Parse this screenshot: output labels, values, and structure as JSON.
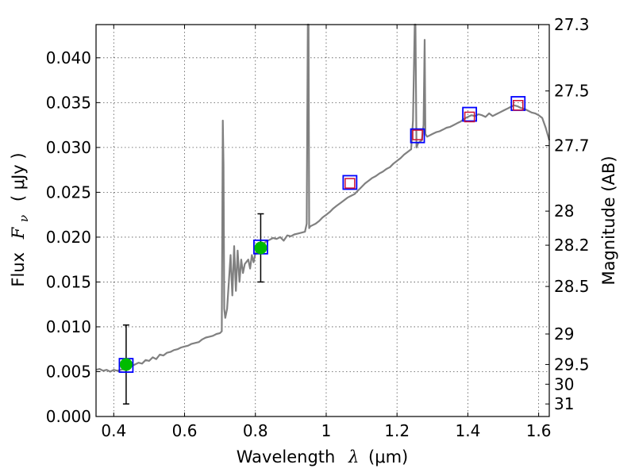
{
  "chart_data": {
    "type": "line",
    "title": "",
    "xlabel": "Wavelength",
    "xlabel_symbol": "λ",
    "xlabel_unit": "(μm)",
    "ylabel": "Flux",
    "ylabel_symbol": "F",
    "ylabel_subscript": "ν",
    "ylabel_unit": "( μJy )",
    "y2label": "Magnitude (AB)",
    "xlim": [
      0.35,
      1.63
    ],
    "ylim": [
      0.0,
      0.0437
    ],
    "grid": true,
    "grid_style": "dotted",
    "x_ticks": [
      {
        "value": 0.4,
        "label": "0.4"
      },
      {
        "value": 0.6,
        "label": "0.6"
      },
      {
        "value": 0.8,
        "label": "0.8"
      },
      {
        "value": 1.0,
        "label": "1"
      },
      {
        "value": 1.2,
        "label": "1.2"
      },
      {
        "value": 1.4,
        "label": "1.4"
      },
      {
        "value": 1.6,
        "label": "1.6"
      }
    ],
    "y_ticks": [
      {
        "value": 0.0,
        "label": "0.000"
      },
      {
        "value": 0.005,
        "label": "0.005"
      },
      {
        "value": 0.01,
        "label": "0.010"
      },
      {
        "value": 0.015,
        "label": "0.015"
      },
      {
        "value": 0.02,
        "label": "0.020"
      },
      {
        "value": 0.025,
        "label": "0.025"
      },
      {
        "value": 0.03,
        "label": "0.030"
      },
      {
        "value": 0.035,
        "label": "0.035"
      },
      {
        "value": 0.04,
        "label": "0.040"
      }
    ],
    "y2_ticks": [
      {
        "flux": 0.0437,
        "label": "27.3"
      },
      {
        "flux": 0.0363,
        "label": "27.5"
      },
      {
        "flux": 0.0302,
        "label": "27.7"
      },
      {
        "flux": 0.0229,
        "label": "28"
      },
      {
        "flux": 0.0191,
        "label": "28.2"
      },
      {
        "flux": 0.0145,
        "label": "28.5"
      },
      {
        "flux": 0.0092,
        "label": "29"
      },
      {
        "flux": 0.0058,
        "label": "29.5"
      },
      {
        "flux": 0.0036,
        "label": "30"
      },
      {
        "flux": 0.0014,
        "label": "31"
      }
    ],
    "colors": {
      "model": "#808080",
      "photometry_fill": "#00bb00",
      "observed_box": "#0000ff",
      "model_box": "#cc1133",
      "errorbar": "#000000",
      "grid": "#555555"
    },
    "model_spectrum": {
      "x": [
        0.35,
        0.36,
        0.37,
        0.38,
        0.39,
        0.4,
        0.41,
        0.42,
        0.43,
        0.44,
        0.45,
        0.46,
        0.47,
        0.48,
        0.49,
        0.5,
        0.51,
        0.52,
        0.53,
        0.54,
        0.55,
        0.56,
        0.57,
        0.58,
        0.59,
        0.6,
        0.61,
        0.62,
        0.63,
        0.64,
        0.65,
        0.66,
        0.67,
        0.68,
        0.69,
        0.7,
        0.705,
        0.708,
        0.71,
        0.712,
        0.715,
        0.72,
        0.73,
        0.735,
        0.74,
        0.745,
        0.75,
        0.755,
        0.76,
        0.765,
        0.77,
        0.78,
        0.785,
        0.79,
        0.795,
        0.8,
        0.81,
        0.82,
        0.83,
        0.84,
        0.85,
        0.86,
        0.87,
        0.88,
        0.89,
        0.9,
        0.91,
        0.92,
        0.93,
        0.94,
        0.945,
        0.948,
        0.95,
        0.952,
        0.955,
        0.96,
        0.97,
        0.98,
        0.99,
        1.0,
        1.01,
        1.02,
        1.03,
        1.04,
        1.05,
        1.06,
        1.07,
        1.08,
        1.09,
        1.1,
        1.11,
        1.12,
        1.13,
        1.14,
        1.15,
        1.16,
        1.17,
        1.18,
        1.19,
        1.2,
        1.21,
        1.22,
        1.23,
        1.24,
        1.245,
        1.25,
        1.252,
        1.255,
        1.26,
        1.27,
        1.275,
        1.278,
        1.28,
        1.285,
        1.29,
        1.3,
        1.31,
        1.32,
        1.33,
        1.34,
        1.35,
        1.36,
        1.37,
        1.38,
        1.39,
        1.4,
        1.41,
        1.42,
        1.43,
        1.44,
        1.45,
        1.46,
        1.47,
        1.48,
        1.49,
        1.5,
        1.51,
        1.52,
        1.53,
        1.54,
        1.55,
        1.56,
        1.57,
        1.58,
        1.59,
        1.6,
        1.61,
        1.62,
        1.63
      ],
      "y": [
        0.0052,
        0.0053,
        0.0051,
        0.0052,
        0.005,
        0.0052,
        0.0051,
        0.0052,
        0.0053,
        0.0055,
        0.0056,
        0.0058,
        0.006,
        0.0059,
        0.0063,
        0.0062,
        0.0066,
        0.0064,
        0.0069,
        0.0068,
        0.0071,
        0.0072,
        0.0074,
        0.0075,
        0.0077,
        0.0078,
        0.0079,
        0.0081,
        0.0082,
        0.0083,
        0.0086,
        0.0088,
        0.0089,
        0.009,
        0.0092,
        0.0093,
        0.0095,
        0.033,
        0.028,
        0.012,
        0.011,
        0.012,
        0.018,
        0.0135,
        0.019,
        0.014,
        0.0185,
        0.015,
        0.0175,
        0.016,
        0.017,
        0.0175,
        0.0165,
        0.018,
        0.0172,
        0.0182,
        0.0188,
        0.0192,
        0.0195,
        0.0197,
        0.0199,
        0.0198,
        0.02,
        0.0196,
        0.0202,
        0.0201,
        0.0203,
        0.0204,
        0.0205,
        0.0206,
        0.0215,
        0.0437,
        0.0437,
        0.021,
        0.0212,
        0.0213,
        0.0215,
        0.0218,
        0.0222,
        0.0225,
        0.0228,
        0.0232,
        0.0235,
        0.0238,
        0.0241,
        0.0244,
        0.0246,
        0.0248,
        0.0252,
        0.0256,
        0.026,
        0.0263,
        0.0266,
        0.0268,
        0.0271,
        0.0273,
        0.0276,
        0.0278,
        0.0282,
        0.0285,
        0.0288,
        0.0292,
        0.0295,
        0.0298,
        0.033,
        0.0437,
        0.0437,
        0.03,
        0.0305,
        0.0308,
        0.0325,
        0.042,
        0.0315,
        0.0312,
        0.0313,
        0.0315,
        0.0317,
        0.0318,
        0.032,
        0.0322,
        0.0323,
        0.0325,
        0.0327,
        0.0329,
        0.0332,
        0.0334,
        0.0336,
        0.0335,
        0.0337,
        0.0336,
        0.0334,
        0.0338,
        0.0335,
        0.0337,
        0.0339,
        0.0341,
        0.0343,
        0.0345,
        0.0347,
        0.0346,
        0.0344,
        0.0343,
        0.0341,
        0.0339,
        0.0338,
        0.0336,
        0.0333,
        0.0322,
        0.0308
      ]
    },
    "photometry": {
      "x": [
        0.435,
        0.815
      ],
      "y": [
        0.0058,
        0.0188
      ],
      "yerr": [
        0.0044,
        0.0038
      ]
    },
    "observed_boxes": {
      "x": [
        0.435,
        0.815,
        1.067,
        1.258,
        1.405,
        1.542
      ],
      "y": [
        0.0057,
        0.0189,
        0.0261,
        0.0313,
        0.0337,
        0.0349
      ]
    },
    "model_boxes": {
      "x": [
        1.067,
        1.258,
        1.405,
        1.542
      ],
      "y": [
        0.026,
        0.0314,
        0.0334,
        0.0347
      ]
    }
  }
}
